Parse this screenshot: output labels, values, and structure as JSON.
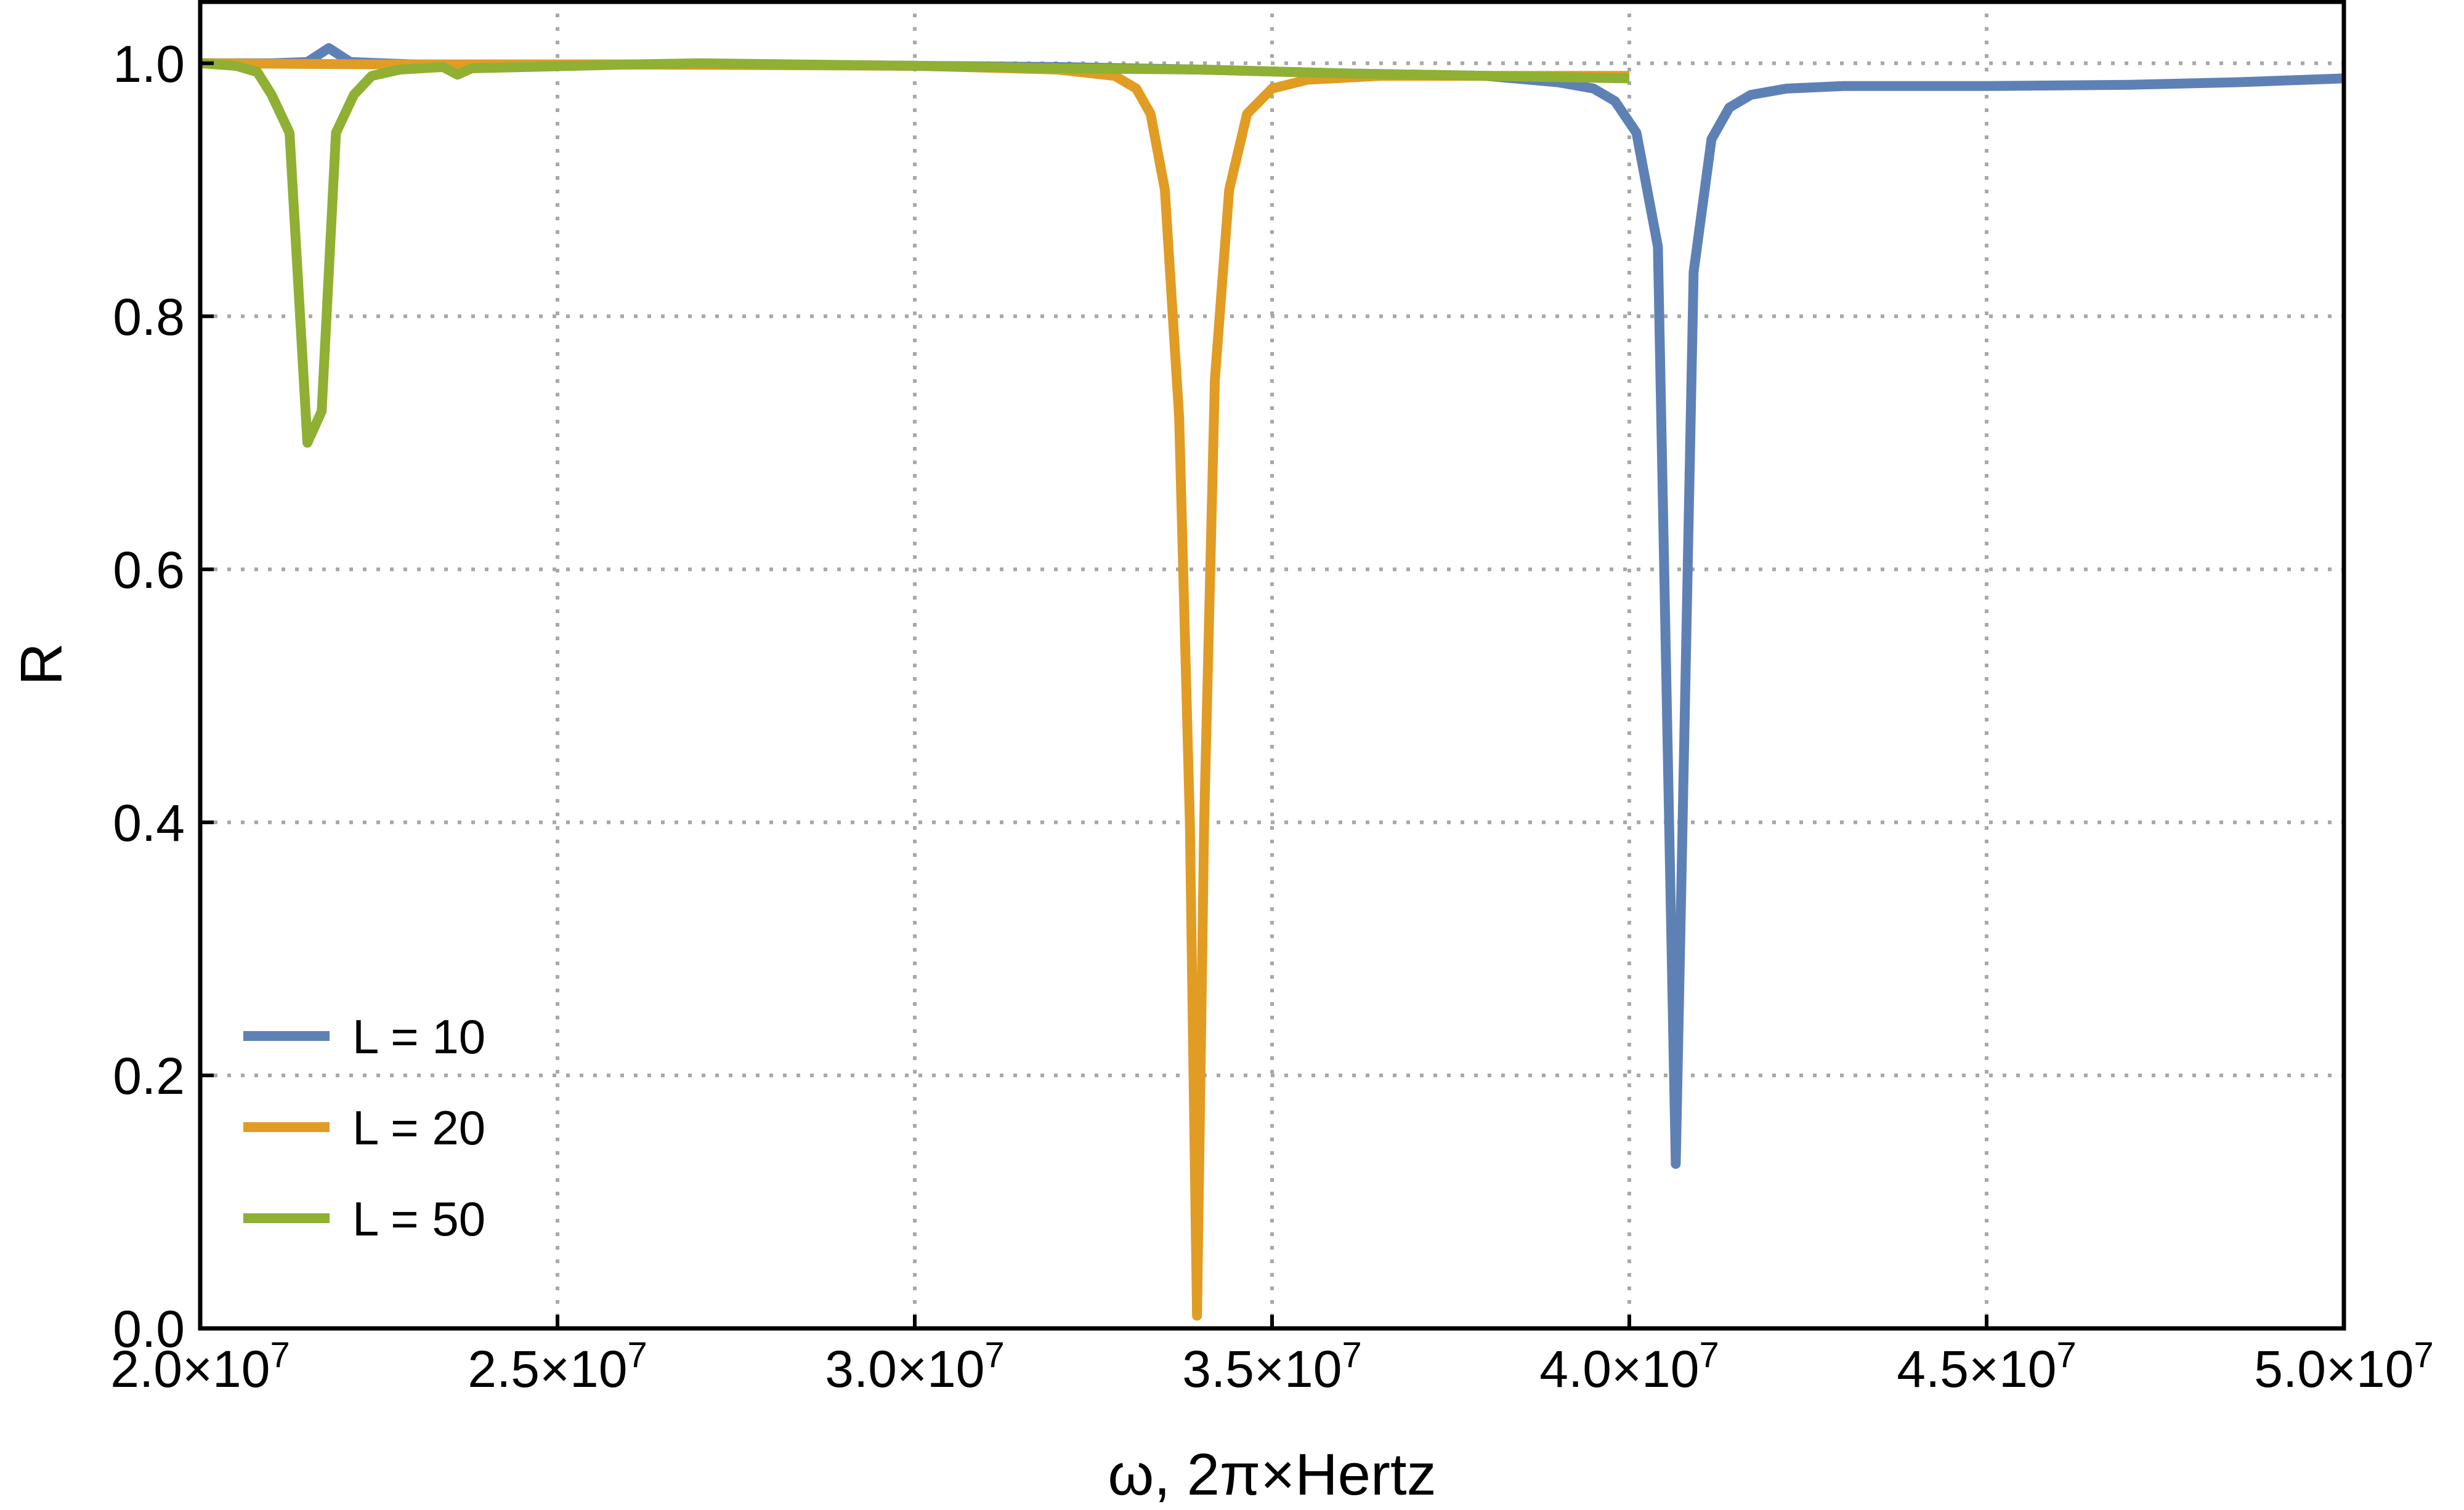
{
  "chart_data": {
    "type": "line",
    "title": "",
    "xlabel": "ω, 2π×Hertz",
    "ylabel": "R",
    "xlim": [
      20000000,
      50000000
    ],
    "ylim": [
      0,
      1.05
    ],
    "grid": true,
    "legend_position": "bottom-left",
    "x_ticks": [
      {
        "value": 20000000,
        "mantissa": "2.0",
        "exponent": "7"
      },
      {
        "value": 25000000,
        "mantissa": "2.5",
        "exponent": "7"
      },
      {
        "value": 30000000,
        "mantissa": "3.0",
        "exponent": "7"
      },
      {
        "value": 35000000,
        "mantissa": "3.5",
        "exponent": "7"
      },
      {
        "value": 40000000,
        "mantissa": "4.0",
        "exponent": "7"
      },
      {
        "value": 45000000,
        "mantissa": "4.5",
        "exponent": "7"
      },
      {
        "value": 50000000,
        "mantissa": "5.0",
        "exponent": "7"
      }
    ],
    "y_ticks": [
      {
        "value": 0.0,
        "label": "0.0"
      },
      {
        "value": 0.2,
        "label": "0.2"
      },
      {
        "value": 0.4,
        "label": "0.4"
      },
      {
        "value": 0.6,
        "label": "0.6"
      },
      {
        "value": 0.8,
        "label": "0.8"
      },
      {
        "value": 1.0,
        "label": "1.0"
      }
    ],
    "series": [
      {
        "name": "L = 10",
        "color": "#5e81b5",
        "points": [
          [
            20000000,
            1.0
          ],
          [
            21000000,
            1.0
          ],
          [
            21500000,
            1.001
          ],
          [
            21800000,
            1.012
          ],
          [
            22100000,
            1.001
          ],
          [
            23000000,
            0.999
          ],
          [
            25000000,
            0.999
          ],
          [
            28000000,
            0.999
          ],
          [
            30000000,
            0.998
          ],
          [
            32000000,
            0.997
          ],
          [
            34000000,
            0.995
          ],
          [
            36000000,
            0.992
          ],
          [
            38000000,
            0.99
          ],
          [
            39000000,
            0.985
          ],
          [
            39500000,
            0.98
          ],
          [
            39800000,
            0.97
          ],
          [
            40100000,
            0.945
          ],
          [
            40400000,
            0.855
          ],
          [
            40650000,
            0.13
          ],
          [
            40900000,
            0.835
          ],
          [
            41150000,
            0.94
          ],
          [
            41400000,
            0.965
          ],
          [
            41700000,
            0.975
          ],
          [
            42200000,
            0.98
          ],
          [
            43000000,
            0.982
          ],
          [
            45000000,
            0.982
          ],
          [
            47000000,
            0.983
          ],
          [
            48500000,
            0.985
          ],
          [
            50000000,
            0.988
          ]
        ]
      },
      {
        "name": "L = 20",
        "color": "#e19c24",
        "points": [
          [
            20000000,
            1.0
          ],
          [
            23000000,
            0.999
          ],
          [
            26000000,
            0.999
          ],
          [
            30000000,
            0.998
          ],
          [
            32000000,
            0.995
          ],
          [
            32800000,
            0.99
          ],
          [
            33100000,
            0.98
          ],
          [
            33300000,
            0.96
          ],
          [
            33500000,
            0.9
          ],
          [
            33700000,
            0.72
          ],
          [
            33850000,
            0.4
          ],
          [
            33950000,
            0.01
          ],
          [
            34050000,
            0.4
          ],
          [
            34200000,
            0.75
          ],
          [
            34400000,
            0.9
          ],
          [
            34650000,
            0.96
          ],
          [
            35000000,
            0.98
          ],
          [
            35500000,
            0.987
          ],
          [
            36500000,
            0.99
          ],
          [
            38000000,
            0.99
          ],
          [
            40000000,
            0.99
          ]
        ]
      },
      {
        "name": "L = 50",
        "color": "#8fb032",
        "points": [
          [
            20000000,
            1.0
          ],
          [
            20500000,
            0.998
          ],
          [
            20800000,
            0.993
          ],
          [
            21000000,
            0.975
          ],
          [
            21250000,
            0.945
          ],
          [
            21500000,
            0.7
          ],
          [
            21700000,
            0.725
          ],
          [
            21900000,
            0.945
          ],
          [
            22150000,
            0.975
          ],
          [
            22400000,
            0.99
          ],
          [
            22800000,
            0.995
          ],
          [
            23400000,
            0.997
          ],
          [
            23600000,
            0.991
          ],
          [
            23800000,
            0.996
          ],
          [
            26000000,
            0.999
          ],
          [
            27000000,
            1.0
          ],
          [
            30000000,
            0.998
          ],
          [
            32000000,
            0.996
          ],
          [
            34000000,
            0.995
          ],
          [
            36000000,
            0.992
          ],
          [
            38000000,
            0.99
          ],
          [
            40000000,
            0.988
          ]
        ]
      }
    ]
  }
}
